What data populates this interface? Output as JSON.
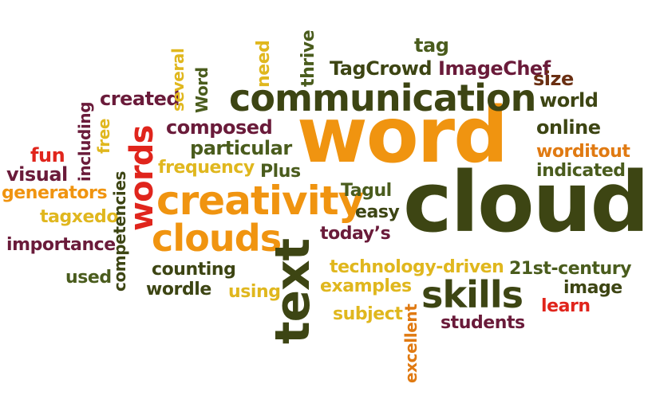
{
  "colors": {
    "orange": "#f09410",
    "dark_olive": "#3d4513",
    "maroon": "#6a1b3a",
    "red": "#e0251c",
    "olive": "#4a5c1d",
    "gold": "#e0b71e",
    "burnt_orange": "#e07a12",
    "brown": "#6a2f12"
  },
  "words": {
    "word": "word",
    "cloud": "cloud",
    "communication": "communication",
    "creativity": "creativity",
    "clouds": "clouds",
    "text": "text",
    "skills": "skills",
    "words": "words",
    "tagcrowd": "TagCrowd",
    "imagechef": "ImageChef",
    "tag": "tag",
    "size": "size",
    "world": "world",
    "online": "online",
    "worditout": "worditout",
    "indicated": "indicated",
    "created": "created",
    "composed": "composed",
    "particular": "particular",
    "frequency": "frequency",
    "plus": "Plus",
    "tagul": "Tagul",
    "easy": "easy",
    "todays": "today’s",
    "fun": "fun",
    "visual": "visual",
    "generators": "generators",
    "tagxedo": "tagxedo",
    "importance": "importance",
    "used": "used",
    "counting": "counting",
    "wordle": "wordle",
    "using": "using",
    "technology_driven": "technology-driven",
    "examples": "examples",
    "subject": "subject",
    "century_21st": "21st-century",
    "image": "image",
    "learn": "learn",
    "students": "students",
    "thrive": "thrive",
    "need": "need",
    "word_vertical": "Word",
    "several": "several",
    "including": "including",
    "free": "free",
    "competencies": "competencies",
    "excellent": "excellent"
  }
}
